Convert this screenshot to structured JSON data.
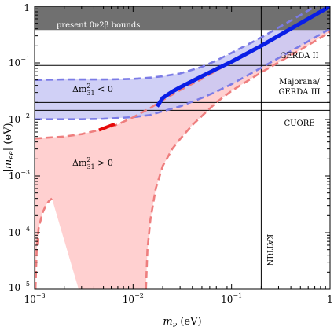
{
  "chart_data": {
    "type": "line",
    "x_scale": "log",
    "y_scale": "log",
    "xlim": [
      0.001,
      1
    ],
    "ylim": [
      1e-05,
      1
    ],
    "x_ticks": [
      {
        "base": "10",
        "exp": "−3",
        "value": 0.001
      },
      {
        "base": "10",
        "exp": "−2",
        "value": 0.01
      },
      {
        "base": "10",
        "exp": "−1",
        "value": 0.1
      },
      {
        "base": "1",
        "exp": "",
        "value": 1
      }
    ],
    "y_ticks": [
      {
        "base": "10",
        "exp": "−5",
        "value": 1e-05
      },
      {
        "base": "10",
        "exp": "−4",
        "value": 0.0001
      },
      {
        "base": "10",
        "exp": "−3",
        "value": 0.001
      },
      {
        "base": "10",
        "exp": "−2",
        "value": 0.01
      },
      {
        "base": "10",
        "exp": "−1",
        "value": 0.1
      },
      {
        "base": "1",
        "exp": "",
        "value": 1
      }
    ],
    "xlabel": {
      "main": "m",
      "sub": "ν",
      "unit": " (eV)"
    },
    "ylabel": {
      "open": "|",
      "main": "m",
      "sub": "ee",
      "close": "| (eV)"
    },
    "bounds_band": {
      "label": "present 0ν2β bounds",
      "y_from": 0.38,
      "y_to": 1,
      "color": "#707070"
    },
    "hlines": [
      {
        "name": "GERDA II",
        "label": "GERDA II",
        "y": 0.09
      },
      {
        "name": "Majorana / GERDA III",
        "label_lines": [
          "Majorana/",
          "GERDA III"
        ],
        "y": 0.02
      },
      {
        "name": "CUORE",
        "label": "CUORE",
        "y": 0.0145
      }
    ],
    "vline": {
      "label": "KATRIN",
      "x": 0.2
    },
    "region_labels": [
      {
        "name": "inverted",
        "text": "Δm",
        "sup": "2",
        "sub": "31",
        "tail": " < 0"
      },
      {
        "name": "normal",
        "text": "Δm",
        "sup": "2",
        "sub": "31",
        "tail": " > 0"
      }
    ],
    "colors": {
      "inverted_fill": "#c8c8f4",
      "normal_fill": "#ffd0d0",
      "inverted_dash": "#7b7be6",
      "normal_dash": "#ee7e7e",
      "inverted_allowed": "#0a1ee6",
      "normal_allowed": "#e60a0a"
    },
    "series": [
      {
        "name": "inverted-upper",
        "style": "dashed",
        "color_key": "inverted_dash",
        "points": [
          [
            0.001,
            0.05
          ],
          [
            0.002,
            0.051
          ],
          [
            0.005,
            0.051
          ],
          [
            0.01,
            0.052
          ],
          [
            0.015,
            0.055
          ],
          [
            0.02,
            0.058
          ],
          [
            0.03,
            0.065
          ],
          [
            0.05,
            0.085
          ],
          [
            0.07,
            0.11
          ],
          [
            0.1,
            0.15
          ],
          [
            0.2,
            0.28
          ],
          [
            0.5,
            0.7
          ],
          [
            1,
            1.4
          ]
        ]
      },
      {
        "name": "inverted-lower",
        "style": "dashed",
        "color_key": "inverted_dash",
        "points": [
          [
            0.001,
            0.0101
          ],
          [
            0.003,
            0.0101
          ],
          [
            0.005,
            0.0103
          ],
          [
            0.01,
            0.011
          ],
          [
            0.015,
            0.012
          ],
          [
            0.02,
            0.014
          ],
          [
            0.03,
            0.017
          ],
          [
            0.05,
            0.024
          ],
          [
            0.07,
            0.031
          ],
          [
            0.1,
            0.042
          ],
          [
            0.2,
            0.082
          ],
          [
            0.5,
            0.2
          ],
          [
            1,
            0.4
          ]
        ]
      },
      {
        "name": "normal-upper",
        "style": "dashed",
        "color_key": "normal_dash",
        "points": [
          [
            0.001,
            0.0046
          ],
          [
            0.002,
            0.005
          ],
          [
            0.003,
            0.0055
          ],
          [
            0.005,
            0.0068
          ],
          [
            0.007,
            0.0082
          ],
          [
            0.01,
            0.0109
          ],
          [
            0.015,
            0.016
          ],
          [
            0.02,
            0.022
          ],
          [
            0.03,
            0.033
          ],
          [
            0.05,
            0.052
          ],
          [
            0.1,
            0.104
          ],
          [
            0.2,
            0.203
          ],
          [
            0.5,
            0.5
          ],
          [
            1,
            1
          ]
        ]
      },
      {
        "name": "normal-lower",
        "style": "dashed",
        "color_key": "normal_dash",
        "points": [
          [
            0.00102,
            1e-05
          ],
          [
            0.00105,
            5e-05
          ],
          [
            0.0011,
            0.00012
          ],
          [
            0.0012,
            0.00022
          ],
          [
            0.0013,
            0.0003
          ],
          [
            0.0014,
            0.00036
          ],
          [
            0.0015,
            0.0004
          ]
        ]
      },
      {
        "name": "normal-cancellation",
        "style": "dashed",
        "color_key": "normal_dash",
        "points": [
          [
            0.0135,
            1e-05
          ],
          [
            0.014,
            5e-05
          ],
          [
            0.015,
            0.00017
          ],
          [
            0.017,
            0.0006
          ],
          [
            0.02,
            0.0015
          ],
          [
            0.025,
            0.003
          ],
          [
            0.03,
            0.0045
          ],
          [
            0.04,
            0.008
          ],
          [
            0.05,
            0.0115
          ],
          [
            0.07,
            0.02
          ],
          [
            0.1,
            0.032
          ],
          [
            0.2,
            0.068
          ],
          [
            0.5,
            0.17
          ],
          [
            1,
            0.35
          ]
        ]
      },
      {
        "name": "inverted-allowed",
        "style": "solid",
        "color_key": "inverted_allowed",
        "points": [
          [
            0.0175,
            0.017
          ],
          [
            0.02,
            0.024
          ],
          [
            0.025,
            0.031
          ],
          [
            0.03,
            0.037
          ],
          [
            0.05,
            0.058
          ],
          [
            0.07,
            0.078
          ],
          [
            0.1,
            0.105
          ],
          [
            0.2,
            0.2
          ],
          [
            0.5,
            0.5
          ],
          [
            1,
            1
          ]
        ]
      },
      {
        "name": "normal-allowed",
        "style": "solid",
        "color_key": "normal_allowed",
        "points": [
          [
            0.0045,
            0.0065
          ],
          [
            0.0065,
            0.0083
          ]
        ]
      }
    ],
    "grid": false,
    "legend": "none"
  }
}
